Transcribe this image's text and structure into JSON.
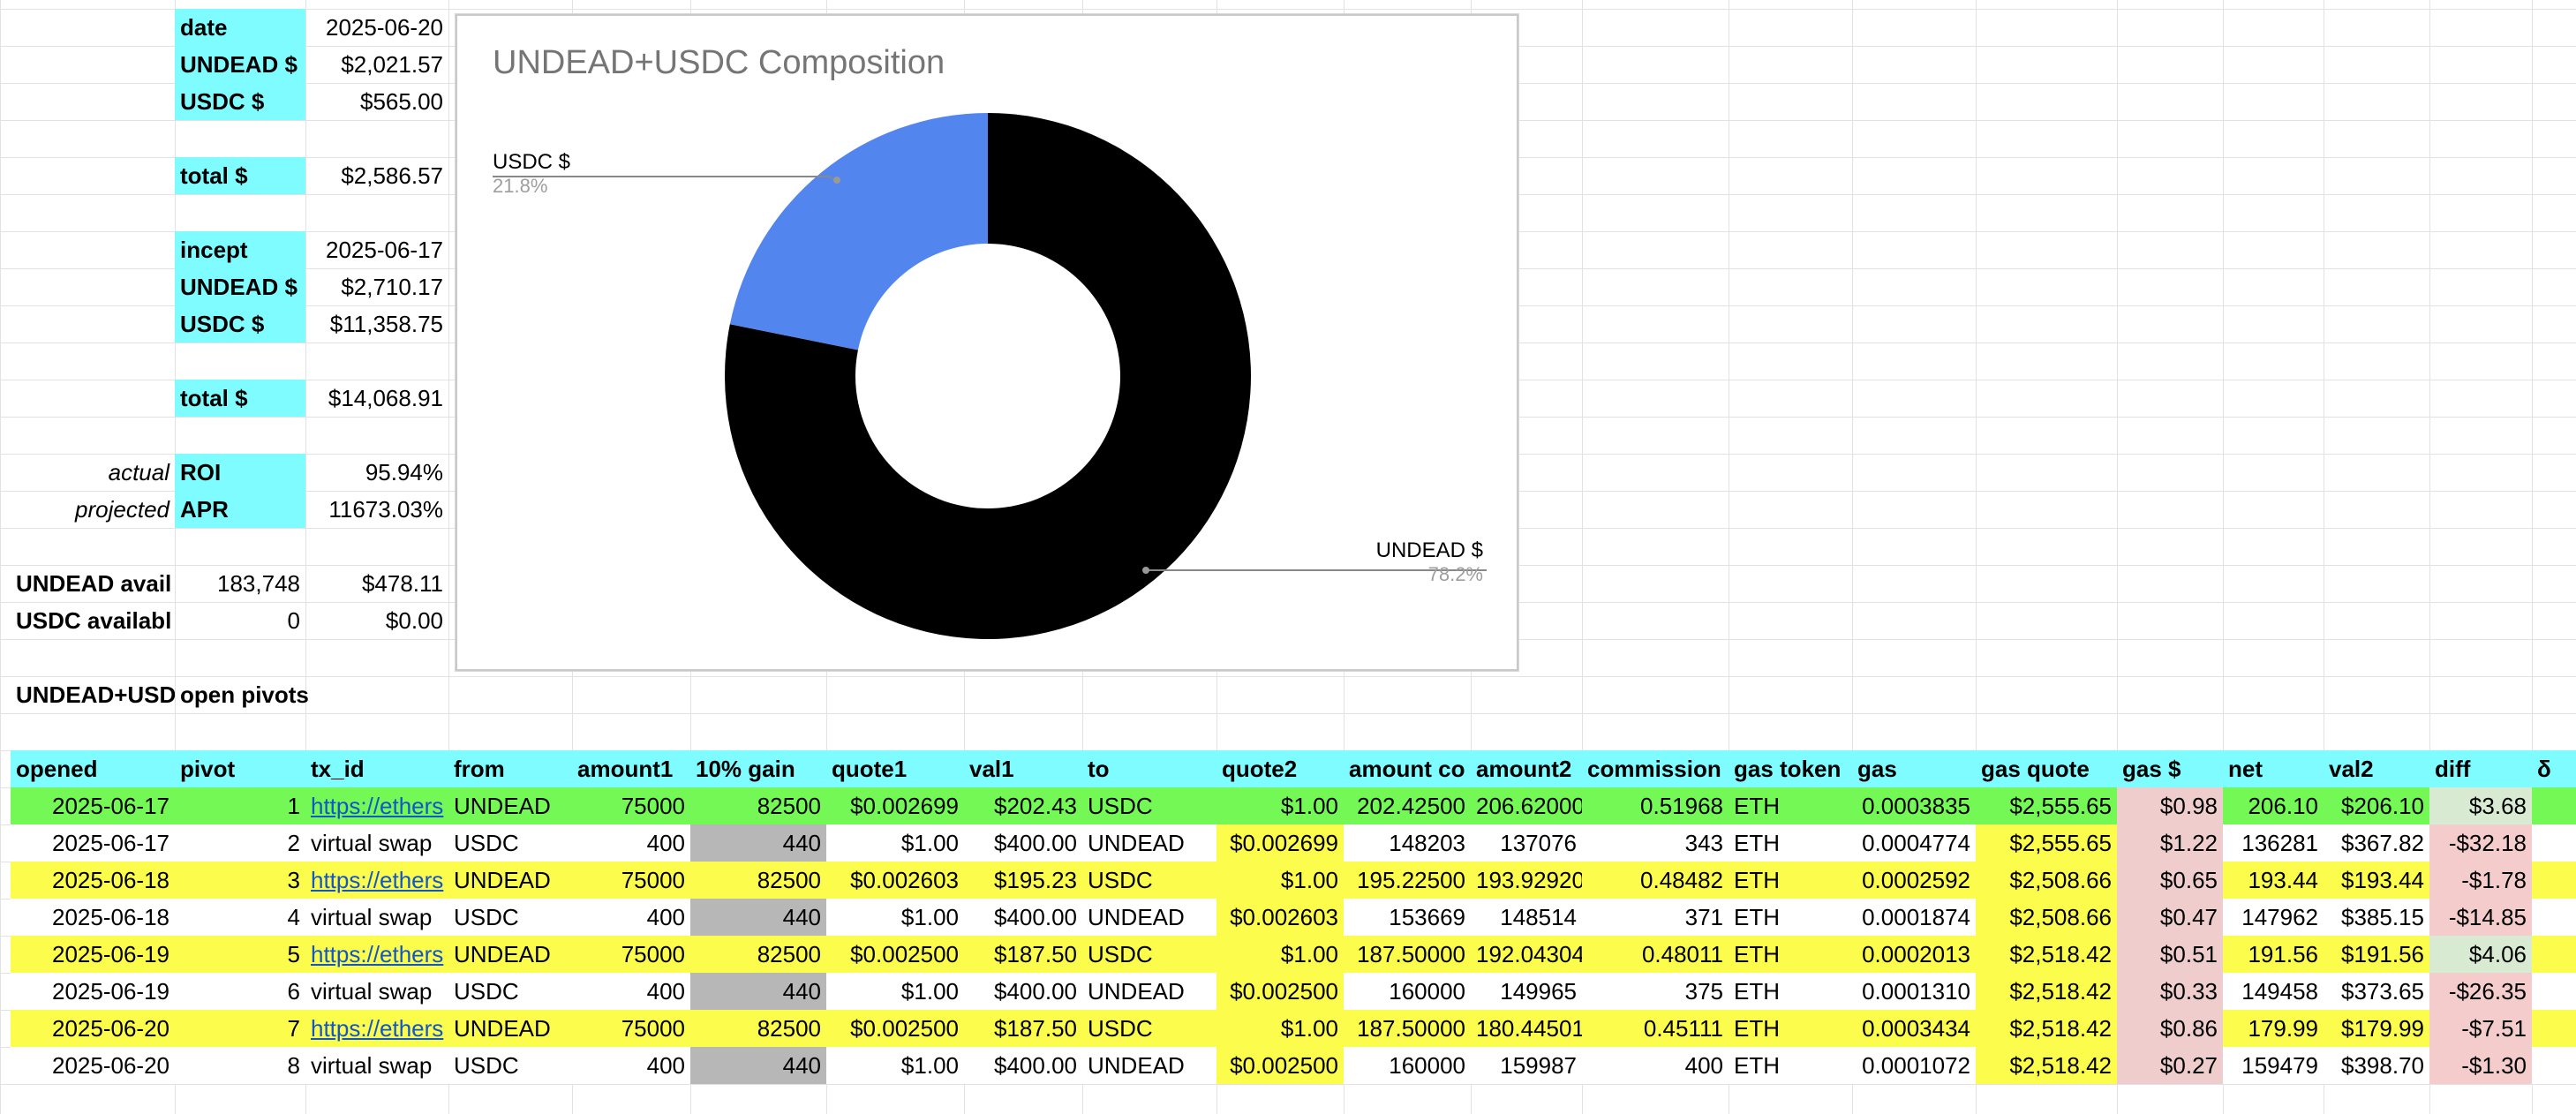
{
  "summary": {
    "date_label": "date",
    "date_value": "2025-06-20",
    "undead_label": "UNDEAD $",
    "undead_value": "$2,021.57",
    "usdc_label": "USDC $",
    "usdc_value": "$565.00",
    "total_label": "total $",
    "total_value": "$2,586.57",
    "incept_label": "incept",
    "incept_value": "2025-06-17",
    "incept_undead_label": "UNDEAD $",
    "incept_undead_value": "$2,710.17",
    "incept_usdc_label": "USDC $",
    "incept_usdc_value": "$11,358.75",
    "incept_total_label": "total $",
    "incept_total_value": "$14,068.91",
    "roi_prefix": "actual",
    "roi_label": "ROI",
    "roi_value": "95.94%",
    "apr_prefix": "projected",
    "apr_label": "APR",
    "apr_value": "11673.03%",
    "undead_avail_label": "UNDEAD avail",
    "undead_avail_qty": "183,748",
    "undead_avail_usd": "$478.11",
    "usdc_avail_label": "USDC availabl",
    "usdc_avail_qty": "0",
    "usdc_avail_usd": "$0.00",
    "pivots_a": "UNDEAD+USD",
    "pivots_b": "open pivots"
  },
  "chart_data": {
    "type": "pie",
    "title": "UNDEAD+USDC Composition",
    "donut": true,
    "categories": [
      "UNDEAD $",
      "USDC $"
    ],
    "values": [
      2021.57,
      565.0
    ],
    "percent_labels": [
      "78.2%",
      "21.8%"
    ],
    "colors": [
      "#000000",
      "#5385ee"
    ]
  },
  "table": {
    "headers": [
      "opened",
      "pivot",
      "tx_id",
      "from",
      "amount1",
      "10% gain",
      "quote1",
      "val1",
      "to",
      "quote2",
      "amount co",
      "amount2",
      "commission",
      "gas token",
      "gas",
      "gas quote",
      "gas $",
      "net",
      "val2",
      "diff",
      "δ"
    ],
    "rows": [
      [
        "2025-06-17",
        "1",
        "https://ethers",
        "UNDEAD",
        "75000",
        "82500",
        "$0.002699",
        "$202.43",
        "USDC",
        "$1.00",
        "202.42500",
        "206.62000",
        "0.51968",
        "ETH",
        "0.0003835",
        "$2,555.65",
        "$0.98",
        "206.10",
        "$206.10",
        "$3.68",
        ""
      ],
      [
        "2025-06-17",
        "2",
        "virtual swap",
        "USDC",
        "400",
        "440",
        "$1.00",
        "$400.00",
        "UNDEAD",
        "$0.002699",
        "148203",
        "137076",
        "343",
        "ETH",
        "0.0004774",
        "$2,555.65",
        "$1.22",
        "136281",
        "$367.82",
        "-$32.18",
        ""
      ],
      [
        "2025-06-18",
        "3",
        "https://ethers",
        "UNDEAD",
        "75000",
        "82500",
        "$0.002603",
        "$195.23",
        "USDC",
        "$1.00",
        "195.22500",
        "193.92920",
        "0.48482",
        "ETH",
        "0.0002592",
        "$2,508.66",
        "$0.65",
        "193.44",
        "$193.44",
        "-$1.78",
        ""
      ],
      [
        "2025-06-18",
        "4",
        "virtual swap",
        "USDC",
        "400",
        "440",
        "$1.00",
        "$400.00",
        "UNDEAD",
        "$0.002603",
        "153669",
        "148514",
        "371",
        "ETH",
        "0.0001874",
        "$2,508.66",
        "$0.47",
        "147962",
        "$385.15",
        "-$14.85",
        ""
      ],
      [
        "2025-06-19",
        "5",
        "https://ethers",
        "UNDEAD",
        "75000",
        "82500",
        "$0.002500",
        "$187.50",
        "USDC",
        "$1.00",
        "187.50000",
        "192.04304",
        "0.48011",
        "ETH",
        "0.0002013",
        "$2,518.42",
        "$0.51",
        "191.56",
        "$191.56",
        "$4.06",
        ""
      ],
      [
        "2025-06-19",
        "6",
        "virtual swap",
        "USDC",
        "400",
        "440",
        "$1.00",
        "$400.00",
        "UNDEAD",
        "$0.002500",
        "160000",
        "149965",
        "375",
        "ETH",
        "0.0001310",
        "$2,518.42",
        "$0.33",
        "149458",
        "$373.65",
        "-$26.35",
        ""
      ],
      [
        "2025-06-20",
        "7",
        "https://ethers",
        "UNDEAD",
        "75000",
        "82500",
        "$0.002500",
        "$187.50",
        "USDC",
        "$1.00",
        "187.50000",
        "180.44501",
        "0.45111",
        "ETH",
        "0.0003434",
        "$2,518.42",
        "$0.86",
        "179.99",
        "$179.99",
        "-$7.51",
        ""
      ],
      [
        "2025-06-20",
        "8",
        "virtual swap",
        "USDC",
        "400",
        "440",
        "$1.00",
        "$400.00",
        "UNDEAD",
        "$0.002500",
        "160000",
        "159987",
        "400",
        "ETH",
        "0.0001072",
        "$2,518.42",
        "$0.27",
        "159479",
        "$398.70",
        "-$1.30",
        ""
      ]
    ]
  },
  "colors": {
    "header_bg": "#7efcff",
    "green_row": "#74f856",
    "yellow_row": "#fcfc4c",
    "gray_gain": "#b7b7b7",
    "pink_gas": "#efcdcd",
    "diff_pos": "#d9ead3",
    "diff_neg": "#f4cccc"
  }
}
